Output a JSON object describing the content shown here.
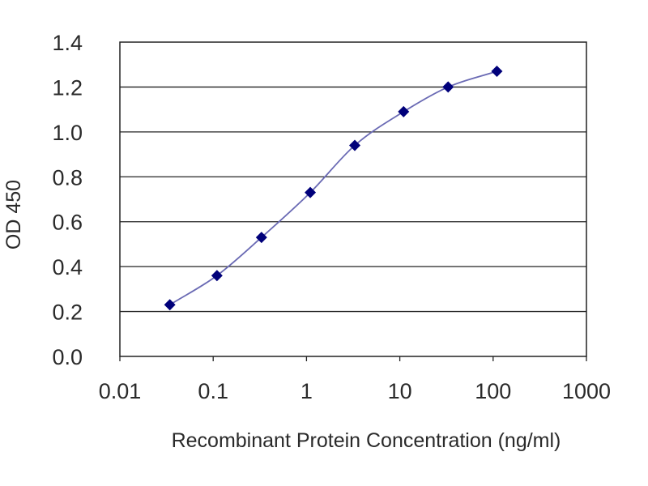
{
  "chart_data": {
    "type": "scatter",
    "title": "",
    "xlabel": "Recombinant Protein Concentration  (ng/ml)",
    "ylabel": "OD 450",
    "x_scale": "log",
    "xlim": [
      0.01,
      1000
    ],
    "ylim": [
      0.0,
      1.4
    ],
    "x_tick_labels": [
      "0.01",
      "0.1",
      "1",
      "10",
      "100",
      "1000"
    ],
    "y_tick_labels": [
      "0.0",
      "0.2",
      "0.4",
      "0.6",
      "0.8",
      "1.0",
      "1.2",
      "1.4"
    ],
    "grid": "horizontal",
    "legend": "none",
    "fitted_curve": true,
    "series": [
      {
        "x": [
          0.0343,
          0.1097,
          0.3292,
          1.0974,
          3.2922,
          10.974,
          32.922,
          109.74
        ],
        "y": [
          0.23,
          0.36,
          0.53,
          0.73,
          0.94,
          1.09,
          1.2,
          1.27
        ],
        "color": "#00007a"
      }
    ],
    "curve_color": "#6a6ab4",
    "plot_border_color": "#222222",
    "grid_color": "#222222"
  }
}
